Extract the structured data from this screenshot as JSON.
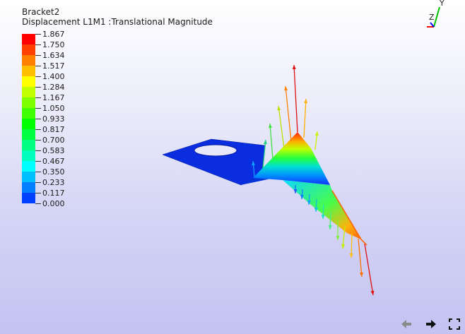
{
  "header": {
    "model_name": "Bracket2",
    "result_label": "Displacement L1M1 :Translational Magnitude"
  },
  "legend": {
    "values": [
      "1.867",
      "1.750",
      "1.634",
      "1.517",
      "1.400",
      "1.284",
      "1.167",
      "1.050",
      "0.933",
      "0.817",
      "0.700",
      "0.583",
      "0.467",
      "0.350",
      "0.233",
      "0.117",
      "0.000"
    ],
    "colors": [
      "#ff0000",
      "#ff4000",
      "#ff8000",
      "#ffbf00",
      "#ffff00",
      "#bfff00",
      "#80ff00",
      "#40ff00",
      "#00ff00",
      "#00ff40",
      "#00ff80",
      "#00ffbf",
      "#00ffff",
      "#00bfff",
      "#0080ff",
      "#0040ff",
      "#0000ff"
    ]
  },
  "triad": {
    "axis_z_label": "Z",
    "axis_y_label": "Y"
  },
  "toolbar": {
    "back_icon": "arrow-left-icon",
    "forward_icon": "arrow-right-icon",
    "fullscreen_icon": "fullscreen-icon"
  }
}
